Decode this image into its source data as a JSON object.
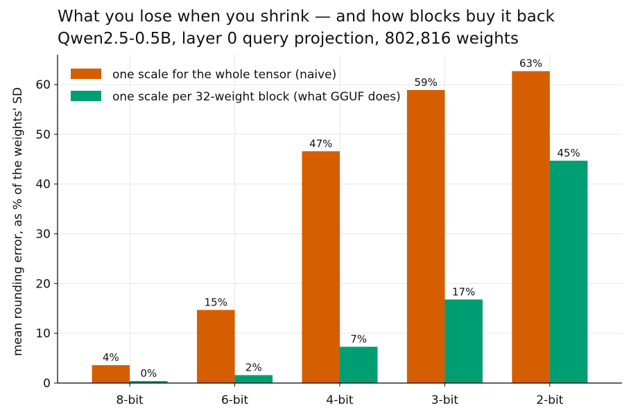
{
  "chart_data": {
    "type": "bar",
    "title": "What you lose when you shrink — and how blocks buy it back",
    "subtitle": "Qwen2.5-0.5B, layer 0 query projection, 802,816 weights",
    "xlabel": "",
    "ylabel": "mean rounding error, as % of the weights' SD",
    "categories": [
      "8-bit",
      "6-bit",
      "4-bit",
      "3-bit",
      "2-bit"
    ],
    "ylim": [
      0,
      66
    ],
    "yticks": [
      0,
      10,
      20,
      30,
      40,
      50,
      60
    ],
    "grid": true,
    "legend_position": "top-left",
    "series": [
      {
        "name": "one scale for the whole tensor (naive)",
        "color": "#d55e00",
        "values": [
          3.6,
          14.7,
          46.6,
          58.9,
          62.7
        ],
        "labels": [
          "4%",
          "15%",
          "47%",
          "59%",
          "63%"
        ]
      },
      {
        "name": "one scale per 32-weight block (what GGUF does)",
        "color": "#009e73",
        "values": [
          0.4,
          1.6,
          7.3,
          16.8,
          44.7
        ],
        "labels": [
          "0%",
          "2%",
          "7%",
          "17%",
          "45%"
        ]
      }
    ]
  }
}
